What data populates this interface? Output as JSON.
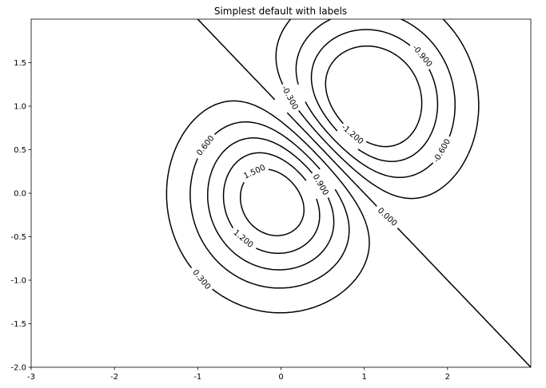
{
  "chart_data": {
    "type": "contour",
    "title": "Simplest default with labels",
    "xlabel": "",
    "ylabel": "",
    "xlim": [
      -3,
      3
    ],
    "ylim": [
      -2,
      2
    ],
    "x_ticks": [
      -3,
      -2,
      -1,
      0,
      1,
      2
    ],
    "x_tick_labels": [
      "-3",
      "-2",
      "-1",
      "0",
      "1",
      "2"
    ],
    "y_ticks": [
      -2.0,
      -1.5,
      -1.0,
      -0.5,
      0.0,
      0.5,
      1.0,
      1.5
    ],
    "y_tick_labels": [
      "-2.0",
      "-1.5",
      "-1.0",
      "-0.5",
      "0.0",
      "0.5",
      "1.0",
      "1.5"
    ],
    "grid": false,
    "function": "Z = (exp(-X^2 - Y^2) - exp(-(X-1)^2 - (Y-1)^2)) * 2",
    "levels": [
      -1.2,
      -0.9,
      -0.6,
      -0.3,
      0.0,
      0.3,
      0.6,
      0.9,
      1.2,
      1.5
    ],
    "negative_linestyle": "dashed",
    "line_color": "#000000",
    "contour_labels": [
      {
        "text": "0.300",
        "x": -0.95,
        "y": -0.99,
        "rotation": 50
      },
      {
        "text": "0.600",
        "x": -0.91,
        "y": 0.55,
        "rotation": -52
      },
      {
        "text": "1.500",
        "x": -0.32,
        "y": 0.25,
        "rotation": -25
      },
      {
        "text": "1.200",
        "x": -0.45,
        "y": -0.52,
        "rotation": 40
      },
      {
        "text": "0.900",
        "x": 0.48,
        "y": 0.1,
        "rotation": 60
      },
      {
        "text": "-0.300",
        "x": 0.11,
        "y": 1.1,
        "rotation": 62
      },
      {
        "text": "-1.200",
        "x": 0.86,
        "y": 0.68,
        "rotation": 40
      },
      {
        "text": "-0.900",
        "x": 1.7,
        "y": 1.58,
        "rotation": 50
      },
      {
        "text": "-0.600",
        "x": 1.93,
        "y": 0.49,
        "rotation": -60
      },
      {
        "text": "0.000",
        "x": 1.28,
        "y": -0.27,
        "rotation": 42
      }
    ]
  }
}
